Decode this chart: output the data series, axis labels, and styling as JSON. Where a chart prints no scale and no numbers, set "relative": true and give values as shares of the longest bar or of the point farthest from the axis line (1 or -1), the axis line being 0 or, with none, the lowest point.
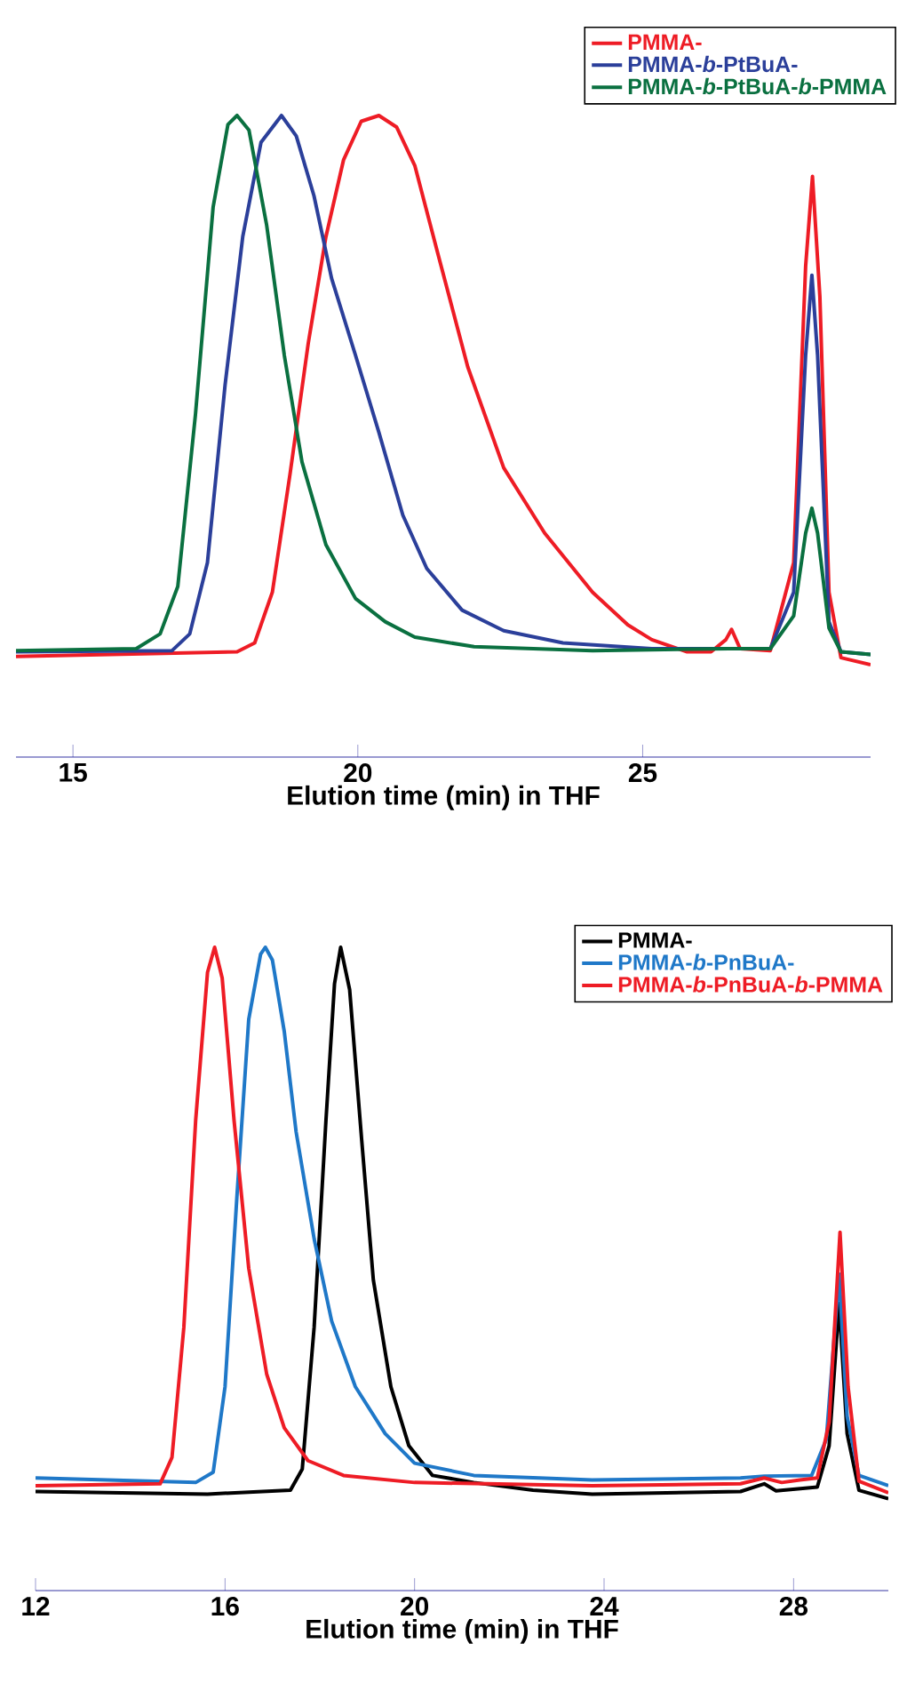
{
  "chart_data": [
    {
      "type": "line",
      "relative": true,
      "marker": "none",
      "legend": "top right",
      "xlabel": "Elution time (min) in THF",
      "xlim": [
        14,
        29
      ],
      "xticks": [
        15,
        20,
        25
      ],
      "series": [
        {
          "name": "PMMA-",
          "color": "#ee1c25",
          "x": [
            14.0,
            17.88,
            18.19,
            18.5,
            18.81,
            19.13,
            19.44,
            19.75,
            20.06,
            20.37,
            20.68,
            21.0,
            21.41,
            21.93,
            22.56,
            23.28,
            24.12,
            24.74,
            25.16,
            25.78,
            26.2,
            26.46,
            26.56,
            26.71,
            27.24,
            27.65,
            27.86,
            27.98,
            28.11,
            28.27,
            28.48,
            29.0
          ],
          "values": [
            0.157,
            0.164,
            0.178,
            0.257,
            0.441,
            0.645,
            0.811,
            0.931,
            0.991,
            1.0,
            0.982,
            0.922,
            0.783,
            0.608,
            0.451,
            0.349,
            0.257,
            0.206,
            0.183,
            0.164,
            0.164,
            0.183,
            0.199,
            0.169,
            0.166,
            0.303,
            0.765,
            0.905,
            0.718,
            0.257,
            0.155,
            0.144
          ]
        },
        {
          "name": "PMMA-*b*-PtBuA-",
          "color": "#2b3f9a",
          "x": [
            14.0,
            16.74,
            17.05,
            17.36,
            17.67,
            17.98,
            18.3,
            18.66,
            18.92,
            19.23,
            19.54,
            19.96,
            20.37,
            20.79,
            21.21,
            21.83,
            22.56,
            23.6,
            25.16,
            27.24,
            27.65,
            27.86,
            27.97,
            28.07,
            28.27,
            28.48,
            29.0
          ],
          "values": [
            0.164,
            0.166,
            0.192,
            0.303,
            0.58,
            0.811,
            0.958,
            1.0,
            0.968,
            0.875,
            0.746,
            0.626,
            0.506,
            0.377,
            0.294,
            0.229,
            0.197,
            0.178,
            0.169,
            0.169,
            0.257,
            0.626,
            0.751,
            0.626,
            0.211,
            0.164,
            0.16
          ]
        },
        {
          "name": "PMMA-*b*-PtBuA-*b*-PMMA",
          "color": "#0a7040",
          "x": [
            14.0,
            16.11,
            16.53,
            16.84,
            17.15,
            17.46,
            17.72,
            17.88,
            18.09,
            18.4,
            18.71,
            19.02,
            19.44,
            19.96,
            20.48,
            21.0,
            22.04,
            24.12,
            26.51,
            27.24,
            27.65,
            27.86,
            27.97,
            28.07,
            28.27,
            28.48,
            29.0
          ],
          "values": [
            0.166,
            0.169,
            0.192,
            0.266,
            0.534,
            0.857,
            0.986,
            1.0,
            0.977,
            0.829,
            0.626,
            0.46,
            0.331,
            0.247,
            0.211,
            0.187,
            0.172,
            0.166,
            0.169,
            0.169,
            0.22,
            0.349,
            0.388,
            0.349,
            0.201,
            0.164,
            0.16
          ]
        }
      ]
    },
    {
      "type": "line",
      "relative": true,
      "marker": "none",
      "legend": "top right",
      "xlabel": "Elution time (min) in THF",
      "xlim": [
        12,
        30
      ],
      "xticks": [
        12,
        16,
        20,
        24,
        28
      ],
      "series": [
        {
          "name": "PMMA-",
          "color": "#000000",
          "x": [
            12.0,
            15.63,
            17.38,
            17.63,
            17.88,
            18.13,
            18.31,
            18.44,
            18.63,
            18.88,
            19.13,
            19.5,
            19.88,
            20.38,
            21.25,
            22.5,
            23.75,
            26.88,
            27.38,
            27.63,
            28.5,
            28.75,
            28.96,
            29.13,
            29.38,
            30.0
          ],
          "values": [
            0.154,
            0.15,
            0.156,
            0.189,
            0.409,
            0.731,
            0.943,
            1.0,
            0.934,
            0.704,
            0.483,
            0.317,
            0.225,
            0.179,
            0.168,
            0.156,
            0.15,
            0.154,
            0.166,
            0.155,
            0.161,
            0.225,
            0.446,
            0.244,
            0.156,
            0.143
          ]
        },
        {
          "name": "PMMA-*b*-PnBuA-",
          "color": "#1f78c8",
          "x": [
            12.0,
            15.38,
            15.75,
            16.0,
            16.25,
            16.5,
            16.75,
            16.85,
            17.0,
            17.25,
            17.5,
            17.88,
            18.25,
            18.75,
            19.38,
            20.0,
            21.25,
            23.75,
            26.88,
            27.38,
            28.38,
            28.69,
            28.96,
            29.13,
            29.38,
            30.0
          ],
          "values": [
            0.175,
            0.168,
            0.184,
            0.317,
            0.612,
            0.888,
            0.989,
            1.0,
            0.98,
            0.869,
            0.713,
            0.547,
            0.419,
            0.317,
            0.244,
            0.198,
            0.179,
            0.172,
            0.175,
            0.178,
            0.179,
            0.235,
            0.492,
            0.271,
            0.179,
            0.163
          ]
        },
        {
          "name": "PMMA-*b*-PnBuA-*b*-PMMA",
          "color": "#ee1c25",
          "x": [
            12.0,
            14.63,
            14.88,
            15.13,
            15.38,
            15.63,
            15.78,
            15.94,
            16.19,
            16.5,
            16.88,
            17.25,
            17.75,
            18.5,
            20.0,
            23.75,
            26.88,
            27.38,
            27.75,
            28.13,
            28.5,
            28.75,
            28.98,
            29.15,
            29.38,
            30.0
          ],
          "values": [
            0.163,
            0.166,
            0.207,
            0.409,
            0.731,
            0.961,
            1.0,
            0.952,
            0.731,
            0.501,
            0.336,
            0.253,
            0.202,
            0.179,
            0.168,
            0.163,
            0.166,
            0.175,
            0.168,
            0.172,
            0.175,
            0.262,
            0.557,
            0.317,
            0.17,
            0.152
          ]
        }
      ]
    }
  ]
}
